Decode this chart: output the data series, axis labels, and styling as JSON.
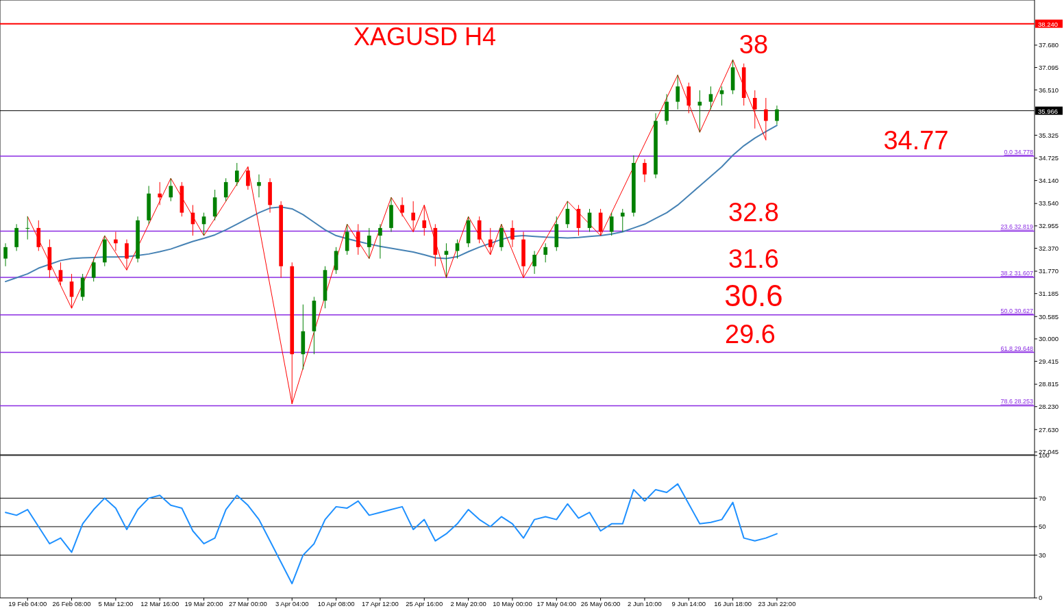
{
  "chart_data": [
    {
      "type": "candlestick",
      "title": "XAGUSD H4",
      "tick_labels": "y",
      "grid": false,
      "categories": [
        null,
        null,
        null,
        null,
        null,
        null,
        null,
        null,
        null,
        null,
        null,
        null,
        null,
        null,
        null,
        null,
        null,
        null,
        null,
        null,
        null,
        null,
        null,
        null,
        null,
        null,
        null,
        null,
        null,
        null,
        null,
        null,
        null,
        null,
        null,
        null,
        null,
        null,
        null,
        null,
        null,
        null,
        null,
        null,
        null,
        null,
        null,
        null,
        null,
        null,
        null,
        null,
        null,
        null,
        null,
        null,
        null,
        null,
        null,
        null,
        null,
        null,
        null,
        null,
        null,
        null,
        null,
        null,
        null,
        null,
        null
      ],
      "ohlc": [
        [
          32.1,
          32.5,
          31.9,
          32.4
        ],
        [
          32.4,
          33.0,
          32.3,
          32.9
        ],
        [
          32.9,
          33.2,
          32.6,
          32.9
        ],
        [
          32.9,
          33.1,
          32.3,
          32.4
        ],
        [
          32.4,
          32.6,
          31.6,
          31.8
        ],
        [
          31.8,
          32.0,
          31.4,
          31.5
        ],
        [
          31.5,
          31.7,
          30.8,
          31.1
        ],
        [
          31.1,
          31.7,
          31.0,
          31.6
        ],
        [
          31.6,
          32.1,
          31.5,
          32.0
        ],
        [
          32.0,
          32.7,
          31.9,
          32.6
        ],
        [
          32.6,
          32.8,
          32.3,
          32.5
        ],
        [
          32.5,
          32.6,
          31.8,
          32.1
        ],
        [
          32.1,
          33.2,
          32.0,
          33.1
        ],
        [
          33.1,
          34.0,
          33.0,
          33.8
        ],
        [
          33.8,
          34.1,
          33.5,
          33.7
        ],
        [
          33.7,
          34.2,
          33.6,
          34.0
        ],
        [
          34.0,
          34.1,
          33.2,
          33.3
        ],
        [
          33.3,
          33.5,
          32.7,
          33.0
        ],
        [
          33.0,
          33.3,
          32.7,
          33.2
        ],
        [
          33.2,
          33.9,
          33.1,
          33.7
        ],
        [
          33.7,
          34.2,
          33.6,
          34.1
        ],
        [
          34.1,
          34.6,
          34.0,
          34.4
        ],
        [
          34.4,
          34.5,
          33.9,
          34.0
        ],
        [
          34.0,
          34.3,
          33.7,
          34.1
        ],
        [
          34.1,
          34.2,
          33.3,
          33.5
        ],
        [
          33.5,
          33.6,
          31.6,
          31.9
        ],
        [
          31.9,
          32.0,
          28.3,
          29.6
        ],
        [
          29.6,
          30.9,
          29.2,
          30.2
        ],
        [
          30.2,
          31.1,
          29.6,
          31.0
        ],
        [
          31.0,
          31.9,
          30.8,
          31.8
        ],
        [
          31.8,
          32.4,
          31.7,
          32.3
        ],
        [
          32.3,
          33.0,
          32.2,
          32.8
        ],
        [
          32.8,
          33.0,
          32.2,
          32.4
        ],
        [
          32.4,
          32.9,
          32.1,
          32.7
        ],
        [
          32.7,
          33.0,
          32.1,
          32.9
        ],
        [
          32.9,
          33.7,
          32.8,
          33.5
        ],
        [
          33.5,
          33.7,
          33.2,
          33.3
        ],
        [
          33.3,
          33.6,
          32.8,
          33.1
        ],
        [
          33.1,
          33.5,
          32.7,
          32.9
        ],
        [
          32.9,
          33.0,
          31.9,
          32.2
        ],
        [
          32.2,
          32.5,
          31.6,
          32.3
        ],
        [
          32.3,
          32.6,
          32.1,
          32.5
        ],
        [
          32.5,
          33.2,
          32.4,
          33.1
        ],
        [
          33.1,
          33.2,
          32.5,
          32.6
        ],
        [
          32.6,
          32.9,
          32.2,
          32.4
        ],
        [
          32.4,
          33.0,
          32.3,
          32.9
        ],
        [
          32.9,
          33.1,
          32.4,
          32.6
        ],
        [
          32.6,
          32.8,
          31.6,
          31.9
        ],
        [
          31.9,
          32.3,
          31.7,
          32.2
        ],
        [
          32.2,
          32.5,
          32.0,
          32.4
        ],
        [
          32.4,
          33.2,
          32.3,
          33.0
        ],
        [
          33.0,
          33.6,
          32.9,
          33.4
        ],
        [
          33.4,
          33.5,
          32.7,
          32.9
        ],
        [
          32.9,
          33.4,
          32.8,
          33.3
        ],
        [
          33.3,
          33.4,
          32.7,
          32.8
        ],
        [
          32.8,
          33.3,
          32.7,
          33.2
        ],
        [
          33.2,
          33.4,
          32.8,
          33.3
        ],
        [
          33.3,
          34.8,
          33.2,
          34.6
        ],
        [
          34.6,
          34.7,
          34.1,
          34.3
        ],
        [
          34.3,
          35.9,
          34.2,
          35.7
        ],
        [
          35.7,
          36.4,
          35.6,
          36.2
        ],
        [
          36.2,
          36.9,
          36.0,
          36.6
        ],
        [
          36.6,
          36.7,
          35.9,
          36.1
        ],
        [
          36.1,
          36.5,
          35.4,
          36.2
        ],
        [
          36.2,
          36.6,
          36.0,
          36.4
        ],
        [
          36.4,
          36.6,
          36.1,
          36.5
        ],
        [
          36.5,
          37.3,
          36.4,
          37.1
        ],
        [
          37.1,
          37.2,
          36.1,
          36.3
        ],
        [
          36.3,
          36.5,
          35.5,
          36.0
        ],
        [
          36.0,
          36.3,
          35.2,
          35.7
        ],
        [
          35.7,
          36.1,
          35.6,
          36.0
        ]
      ],
      "series": [
        {
          "type": "line",
          "color": "#4682b4",
          "values": [
            31.5,
            31.6,
            31.7,
            31.85,
            31.95,
            32.05,
            32.1,
            32.12,
            32.13,
            32.14,
            32.14,
            32.15,
            32.18,
            32.22,
            32.28,
            32.35,
            32.45,
            32.55,
            32.63,
            32.72,
            32.85,
            33.0,
            33.15,
            33.3,
            33.42,
            33.45,
            33.4,
            33.25,
            33.05,
            32.85,
            32.7,
            32.62,
            32.55,
            32.48,
            32.42,
            32.37,
            32.32,
            32.27,
            32.2,
            32.12,
            32.1,
            32.15,
            32.28,
            32.4,
            32.5,
            32.6,
            32.68,
            32.7,
            32.68,
            32.66,
            32.65,
            32.64,
            32.65,
            32.68,
            32.7,
            32.74,
            32.8,
            32.9,
            33.0,
            33.15,
            33.3,
            33.5,
            33.75,
            34.0,
            34.25,
            34.5,
            34.8,
            35.05,
            35.25,
            35.42,
            35.58
          ]
        },
        {
          "type": "line",
          "color": "#ff0000",
          "values": [
            null,
            null,
            33.2,
            null,
            null,
            null,
            30.8,
            null,
            null,
            32.7,
            null,
            31.8,
            null,
            null,
            null,
            34.2,
            null,
            null,
            32.7,
            null,
            null,
            null,
            34.5,
            null,
            null,
            null,
            28.3,
            null,
            null,
            null,
            null,
            33.0,
            null,
            32.1,
            null,
            33.7,
            null,
            32.8,
            33.5,
            null,
            31.6,
            null,
            33.2,
            null,
            32.2,
            33.0,
            null,
            31.6,
            null,
            null,
            null,
            33.6,
            null,
            null,
            32.7,
            null,
            null,
            null,
            null,
            null,
            null,
            36.9,
            null,
            35.4,
            null,
            null,
            37.3,
            null,
            null,
            35.2,
            null
          ]
        }
      ],
      "ylim": [
        26.99,
        38.86
      ],
      "yticks": [
        {
          "value": 37.68,
          "label": "37.680"
        },
        {
          "value": 37.095,
          "label": "37.095"
        },
        {
          "value": 36.51,
          "label": "36.510"
        },
        {
          "value": 35.325,
          "label": "35.325"
        },
        {
          "value": 34.725,
          "label": "34.725"
        },
        {
          "value": 34.14,
          "label": "34.140"
        },
        {
          "value": 33.54,
          "label": "33.540"
        },
        {
          "value": 32.955,
          "label": "32.955"
        },
        {
          "value": 32.37,
          "label": "32.370"
        },
        {
          "value": 31.77,
          "label": "31.770"
        },
        {
          "value": 31.185,
          "label": "31.185"
        },
        {
          "value": 30.585,
          "label": "30.585"
        },
        {
          "value": 30,
          "label": "30.000"
        },
        {
          "value": 29.415,
          "label": "29.415"
        },
        {
          "value": 28.815,
          "label": "28.815"
        },
        {
          "value": 28.23,
          "label": "28.230"
        },
        {
          "value": 27.63,
          "label": "27.630"
        },
        {
          "value": 27.045,
          "label": "27.045"
        }
      ],
      "ref_lines": [
        {
          "axis": "y",
          "value": 38.24,
          "label": "38.240",
          "color": "#ff0000"
        },
        {
          "axis": "y",
          "value": 35.966,
          "label": "35.966",
          "color": "#000000"
        },
        {
          "axis": "y",
          "value": 34.778,
          "label": "0.0 34.778",
          "color": "#8a2be2"
        },
        {
          "axis": "y",
          "value": 32.819,
          "label": "23.6 32.819",
          "color": "#8a2be2"
        },
        {
          "axis": "y",
          "value": 31.607,
          "label": "38.2 31.607",
          "color": "#8a2be2"
        },
        {
          "axis": "y",
          "value": 30.627,
          "label": "50.0 30.627",
          "color": "#8a2be2"
        },
        {
          "axis": "y",
          "value": 29.648,
          "label": "61.8 29.648",
          "color": "#8a2be2"
        },
        {
          "axis": "y",
          "value": 28.253,
          "label": "78.6 28.253",
          "color": "#8a2be2"
        }
      ],
      "annotations": [
        "38",
        "34.77",
        "32.8",
        "31.6",
        "30.6",
        "29.6"
      ]
    },
    {
      "type": "line",
      "grid": false,
      "categories": [
        null,
        null,
        "19 Feb 04:00",
        null,
        null,
        null,
        "26 Feb 08:00",
        null,
        null,
        null,
        "5 Mar 12:00",
        null,
        null,
        null,
        "12 Mar 16:00",
        null,
        null,
        null,
        "19 Mar 20:00",
        null,
        null,
        null,
        "27 Mar 00:00",
        null,
        null,
        null,
        "3 Apr 04:00",
        null,
        null,
        null,
        "10 Apr 08:00",
        null,
        null,
        null,
        "17 Apr 12:00",
        null,
        null,
        null,
        "25 Apr 16:00",
        null,
        null,
        null,
        "2 May 20:00",
        null,
        null,
        null,
        "10 May 00:00",
        null,
        null,
        null,
        "17 May 04:00",
        null,
        null,
        null,
        "26 May 06:00",
        null,
        null,
        null,
        "2 Jun 10:00",
        null,
        null,
        null,
        "9 Jun 14:00",
        null,
        null,
        null,
        "16 Jun 18:00",
        null,
        null,
        null,
        "23 Jun 22:00"
      ],
      "series": [
        {
          "color": "#1e90ff",
          "values": [
            60,
            58,
            62,
            50,
            38,
            42,
            32,
            52,
            62,
            70,
            63,
            48,
            62,
            70,
            72,
            65,
            63,
            47,
            38,
            42,
            62,
            72,
            65,
            55,
            40,
            25,
            10,
            30,
            38,
            55,
            64,
            63,
            68,
            58,
            60,
            62,
            64,
            48,
            55,
            40,
            45,
            52,
            62,
            55,
            50,
            57,
            52,
            42,
            55,
            57,
            55,
            66,
            56,
            60,
            47,
            52,
            52,
            76,
            68,
            76,
            74,
            80,
            66,
            52,
            53,
            55,
            67,
            42,
            40,
            42,
            45
          ]
        }
      ],
      "ylim": [
        0,
        100
      ],
      "yticks": [
        0,
        30,
        50,
        70,
        100
      ],
      "ref_lines": [
        {
          "axis": "y",
          "value": 70,
          "color": "#000000"
        },
        {
          "axis": "y",
          "value": 50,
          "color": "#000000"
        },
        {
          "axis": "y",
          "value": 30,
          "color": "#000000"
        }
      ]
    }
  ]
}
